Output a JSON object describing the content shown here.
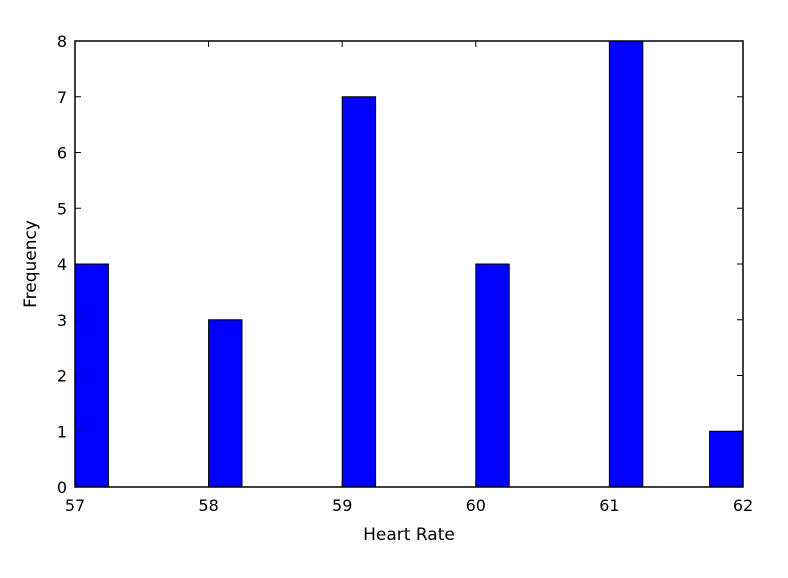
{
  "chart_data": {
    "type": "bar",
    "subtype": "histogram",
    "title": "",
    "xlabel": "Heart Rate",
    "ylabel": "Frequency",
    "xlim": [
      57,
      62
    ],
    "ylim": [
      0,
      8
    ],
    "xticks": [
      "57",
      "58",
      "59",
      "60",
      "61",
      "62"
    ],
    "yticks": [
      "0",
      "1",
      "2",
      "3",
      "4",
      "5",
      "6",
      "7",
      "8"
    ],
    "bin_width": 0.25,
    "bars": [
      {
        "x_start": 57.0,
        "x_end": 57.25,
        "value": 4
      },
      {
        "x_start": 58.0,
        "x_end": 58.25,
        "value": 3
      },
      {
        "x_start": 59.0,
        "x_end": 59.25,
        "value": 7
      },
      {
        "x_start": 60.0,
        "x_end": 60.25,
        "value": 4
      },
      {
        "x_start": 61.0,
        "x_end": 61.25,
        "value": 8
      },
      {
        "x_start": 61.75,
        "x_end": 62.0,
        "value": 1
      }
    ],
    "grid": false,
    "legend": "none",
    "bar_color": "#0000ff",
    "edge_color": "#000000"
  }
}
